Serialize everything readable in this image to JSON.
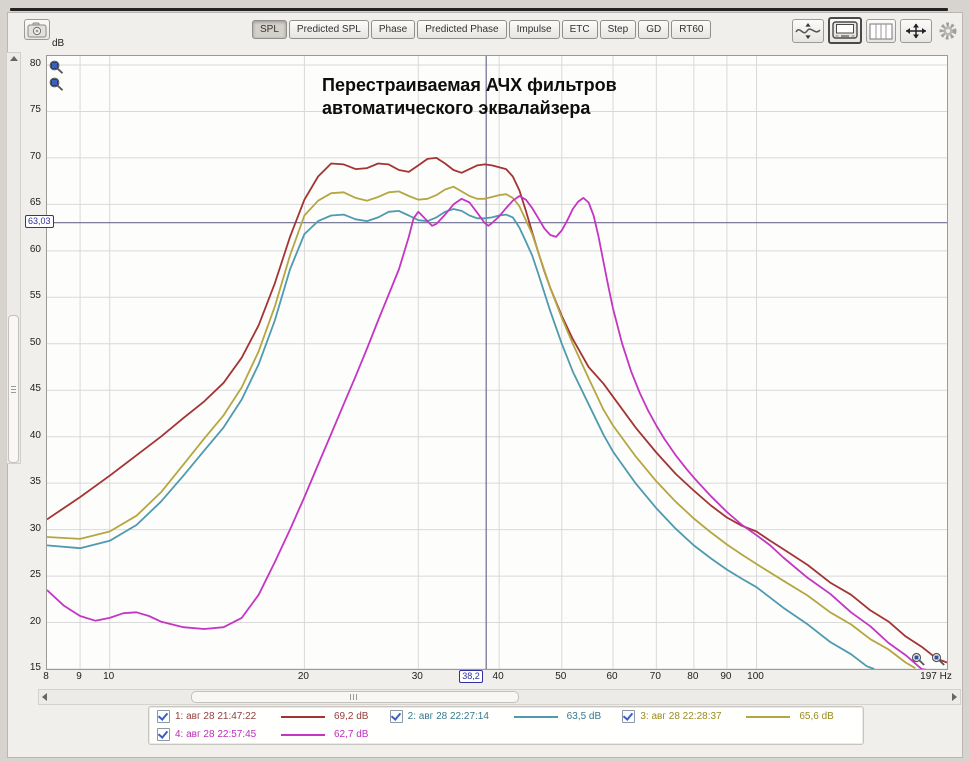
{
  "toolbar": {
    "camera_icon": "camera-icon",
    "tabs": [
      {
        "label": "SPL",
        "active": true
      },
      {
        "label": "Predicted SPL",
        "active": false
      },
      {
        "label": "Phase",
        "active": false
      },
      {
        "label": "Predicted Phase",
        "active": false
      },
      {
        "label": "Impulse",
        "active": false
      },
      {
        "label": "ETC",
        "active": false
      },
      {
        "label": "Step",
        "active": false
      },
      {
        "label": "GD",
        "active": false
      },
      {
        "label": "RT60",
        "active": false
      }
    ],
    "right_icons": [
      {
        "name": "smoothing-icon",
        "active": false
      },
      {
        "name": "graph-display-icon",
        "active": true
      },
      {
        "name": "frequency-bands-icon",
        "active": false
      },
      {
        "name": "pan-zoom-icon",
        "active": false
      },
      {
        "name": "settings-gear-icon",
        "active": false
      }
    ]
  },
  "chart_data": {
    "type": "line",
    "x_scale": "log",
    "x_range": [
      8,
      197
    ],
    "y_range": [
      15,
      80
    ],
    "y_axis_unit": "dB",
    "x_axis_unit": "Hz",
    "title_line1": "Перестраиваемая АЧХ фильтров",
    "title_line2": "автоматического эквалайзера",
    "y_ticks": [
      80,
      75,
      70,
      65,
      60,
      55,
      50,
      45,
      40,
      35,
      30,
      25,
      20,
      15
    ],
    "x_gridlines": [
      9,
      10,
      20,
      30,
      40,
      50,
      60,
      70,
      80,
      90,
      100
    ],
    "x_ticks": [
      {
        "f": 8,
        "label": "8"
      },
      {
        "f": 9,
        "label": "9"
      },
      {
        "f": 10,
        "label": "10"
      },
      {
        "f": 20,
        "label": "20"
      },
      {
        "f": 30,
        "label": "30"
      },
      {
        "f": 40,
        "label": "40"
      },
      {
        "f": 50,
        "label": "50"
      },
      {
        "f": 60,
        "label": "60"
      },
      {
        "f": 70,
        "label": "70"
      },
      {
        "f": 80,
        "label": "80"
      },
      {
        "f": 90,
        "label": "90"
      },
      {
        "f": 100,
        "label": "100"
      },
      {
        "f": 197,
        "label": "197 Hz"
      }
    ],
    "cursor": {
      "freq": 38.2,
      "freq_label": "38,2",
      "db": 63.03,
      "db_label": "63,03"
    },
    "colors": {
      "grid": "#d9d9d9",
      "cursor": "#6b6b8f",
      "cursor_label": "#2f2fa0"
    },
    "legend_rows": [
      [
        0,
        1,
        2
      ],
      [
        3
      ]
    ],
    "series": [
      {
        "id": "1",
        "name": "1: авг 28 21:47:22",
        "value": "69,2 dB",
        "color": "#a33434",
        "text_color": "#94403f",
        "checked": true,
        "points": [
          [
            8,
            31.1
          ],
          [
            9,
            33.5
          ],
          [
            10,
            35.8
          ],
          [
            11,
            38
          ],
          [
            12,
            40
          ],
          [
            13,
            42
          ],
          [
            14,
            43.8
          ],
          [
            15,
            45.8
          ],
          [
            16,
            48.5
          ],
          [
            17,
            52
          ],
          [
            18,
            56.5
          ],
          [
            19,
            61.5
          ],
          [
            20,
            65.5
          ],
          [
            21,
            68
          ],
          [
            22,
            69.4
          ],
          [
            23,
            69.3
          ],
          [
            24,
            68.8
          ],
          [
            25,
            68.9
          ],
          [
            26,
            69.4
          ],
          [
            27,
            69.3
          ],
          [
            28,
            68.7
          ],
          [
            29,
            68.5
          ],
          [
            30,
            69.2
          ],
          [
            31,
            69.9
          ],
          [
            32,
            70
          ],
          [
            33,
            69.4
          ],
          [
            34,
            68.7
          ],
          [
            35,
            68.4
          ],
          [
            36,
            68.8
          ],
          [
            37,
            69.2
          ],
          [
            38,
            69.3
          ],
          [
            39,
            69.2
          ],
          [
            40,
            69
          ],
          [
            41,
            68.8
          ],
          [
            42,
            68
          ],
          [
            43,
            66.5
          ],
          [
            44,
            64.3
          ],
          [
            45,
            62
          ],
          [
            46,
            59.8
          ],
          [
            47,
            57.8
          ],
          [
            48,
            56
          ],
          [
            50,
            53
          ],
          [
            52,
            50.5
          ],
          [
            55,
            47.5
          ],
          [
            58,
            45.7
          ],
          [
            60,
            44.3
          ],
          [
            65,
            41
          ],
          [
            70,
            38.3
          ],
          [
            75,
            36
          ],
          [
            80,
            34.2
          ],
          [
            85,
            32.6
          ],
          [
            90,
            31.3
          ],
          [
            95,
            30.4
          ],
          [
            100,
            29.8
          ],
          [
            105,
            28.8
          ],
          [
            110,
            27.9
          ],
          [
            120,
            26.1
          ],
          [
            130,
            24.4
          ],
          [
            140,
            22.9
          ],
          [
            150,
            21.4
          ],
          [
            160,
            20
          ],
          [
            170,
            18.6
          ],
          [
            180,
            17.3
          ],
          [
            190,
            16.2
          ],
          [
            197,
            15.6
          ]
        ]
      },
      {
        "id": "2",
        "name": "2: авг 28 22:27:14",
        "value": "63,5 dB",
        "color": "#4e9aae",
        "text_color": "#37798c",
        "checked": true,
        "points": [
          [
            8,
            28.3
          ],
          [
            9,
            28
          ],
          [
            10,
            28.8
          ],
          [
            11,
            30.5
          ],
          [
            12,
            33
          ],
          [
            13,
            35.8
          ],
          [
            14,
            38.5
          ],
          [
            15,
            41
          ],
          [
            16,
            44
          ],
          [
            17,
            47.8
          ],
          [
            18,
            52.5
          ],
          [
            19,
            58
          ],
          [
            20,
            61.8
          ],
          [
            21,
            63.2
          ],
          [
            22,
            63.8
          ],
          [
            23,
            63.9
          ],
          [
            24,
            63.4
          ],
          [
            25,
            63.2
          ],
          [
            26,
            63.6
          ],
          [
            27,
            64.2
          ],
          [
            28,
            64.3
          ],
          [
            29,
            63.8
          ],
          [
            30,
            63.3
          ],
          [
            31,
            63.2
          ],
          [
            32,
            63.6
          ],
          [
            33,
            64.2
          ],
          [
            34,
            64.5
          ],
          [
            35,
            64.3
          ],
          [
            36,
            63.8
          ],
          [
            37,
            63.5
          ],
          [
            38,
            63.5
          ],
          [
            39,
            63.6
          ],
          [
            40,
            63.8
          ],
          [
            41,
            63.9
          ],
          [
            42,
            63.6
          ],
          [
            43,
            62.5
          ],
          [
            44,
            61
          ],
          [
            45,
            59.5
          ],
          [
            46,
            57.5
          ],
          [
            48,
            53.5
          ],
          [
            50,
            50
          ],
          [
            52,
            47
          ],
          [
            55,
            43.5
          ],
          [
            58,
            40.2
          ],
          [
            60,
            38.4
          ],
          [
            65,
            35
          ],
          [
            70,
            32.3
          ],
          [
            75,
            30.1
          ],
          [
            80,
            28.3
          ],
          [
            85,
            26.9
          ],
          [
            90,
            25.7
          ],
          [
            95,
            24.7
          ],
          [
            100,
            23.8
          ],
          [
            110,
            21.6
          ],
          [
            120,
            19.7
          ],
          [
            130,
            18
          ],
          [
            140,
            16.5
          ],
          [
            148,
            15.4
          ],
          [
            152,
            14.9
          ]
        ]
      },
      {
        "id": "3",
        "name": "3: авг 28 22:28:37",
        "value": "65,6 dB",
        "color": "#b5a642",
        "text_color": "#9c8b20",
        "checked": true,
        "points": [
          [
            8,
            29.2
          ],
          [
            9,
            29
          ],
          [
            10,
            29.8
          ],
          [
            11,
            31.5
          ],
          [
            12,
            34
          ],
          [
            13,
            37
          ],
          [
            14,
            39.8
          ],
          [
            15,
            42.3
          ],
          [
            16,
            45.3
          ],
          [
            17,
            49.2
          ],
          [
            18,
            54
          ],
          [
            19,
            59.5
          ],
          [
            20,
            63.8
          ],
          [
            21,
            65.4
          ],
          [
            22,
            66.2
          ],
          [
            23,
            66.3
          ],
          [
            24,
            65.7
          ],
          [
            25,
            65.4
          ],
          [
            26,
            65.8
          ],
          [
            27,
            66.3
          ],
          [
            28,
            66.4
          ],
          [
            29,
            65.9
          ],
          [
            30,
            65.5
          ],
          [
            31,
            65.6
          ],
          [
            32,
            66
          ],
          [
            33,
            66.6
          ],
          [
            34,
            66.9
          ],
          [
            35,
            66.4
          ],
          [
            36,
            65.9
          ],
          [
            37,
            65.6
          ],
          [
            38,
            65.6
          ],
          [
            39,
            65.8
          ],
          [
            40,
            66
          ],
          [
            41,
            66.1
          ],
          [
            42,
            65.7
          ],
          [
            43,
            64.8
          ],
          [
            44,
            63.3
          ],
          [
            45,
            61.8
          ],
          [
            46,
            59.8
          ],
          [
            48,
            56
          ],
          [
            50,
            52.8
          ],
          [
            52,
            50
          ],
          [
            55,
            46.3
          ],
          [
            58,
            42.9
          ],
          [
            60,
            41.2
          ],
          [
            65,
            37.9
          ],
          [
            70,
            35.2
          ],
          [
            75,
            33
          ],
          [
            80,
            31.2
          ],
          [
            85,
            29.7
          ],
          [
            90,
            28.4
          ],
          [
            95,
            27.3
          ],
          [
            100,
            26.3
          ],
          [
            110,
            24.5
          ],
          [
            120,
            22.8
          ],
          [
            130,
            21.2
          ],
          [
            140,
            19.7
          ],
          [
            150,
            18.3
          ],
          [
            160,
            17
          ],
          [
            170,
            15.8
          ],
          [
            176,
            15
          ]
        ]
      },
      {
        "id": "4",
        "name": "4: авг 28 22:57:45",
        "value": "62,7 dB",
        "color": "#c435c4",
        "text_color": "#bb2dbb",
        "checked": true,
        "points": [
          [
            8,
            23.5
          ],
          [
            8.5,
            21.8
          ],
          [
            9,
            20.7
          ],
          [
            9.5,
            20.2
          ],
          [
            10,
            20.5
          ],
          [
            10.5,
            21
          ],
          [
            11,
            21.1
          ],
          [
            11.5,
            20.7
          ],
          [
            12,
            20.1
          ],
          [
            13,
            19.5
          ],
          [
            14,
            19.3
          ],
          [
            15,
            19.5
          ],
          [
            16,
            20.5
          ],
          [
            17,
            23
          ],
          [
            18,
            26.5
          ],
          [
            19,
            30
          ],
          [
            20,
            33.5
          ],
          [
            21,
            37
          ],
          [
            22,
            40.3
          ],
          [
            23,
            43.5
          ],
          [
            24,
            46.5
          ],
          [
            25,
            49.5
          ],
          [
            26,
            52.5
          ],
          [
            27,
            55.3
          ],
          [
            28,
            58
          ],
          [
            29,
            61.5
          ],
          [
            29.5,
            63.5
          ],
          [
            30,
            64.2
          ],
          [
            31,
            63.2
          ],
          [
            31.5,
            62.7
          ],
          [
            32,
            62.9
          ],
          [
            33,
            63.9
          ],
          [
            34,
            65
          ],
          [
            35,
            65.6
          ],
          [
            36,
            65.2
          ],
          [
            37,
            64.1
          ],
          [
            38,
            63
          ],
          [
            38.5,
            62.7
          ],
          [
            39,
            63
          ],
          [
            40,
            63.7
          ],
          [
            41,
            64.6
          ],
          [
            42,
            65.4
          ],
          [
            43,
            65.9
          ],
          [
            44,
            65.5
          ],
          [
            45,
            64.6
          ],
          [
            46,
            63.5
          ],
          [
            47,
            62.4
          ],
          [
            48,
            61.7
          ],
          [
            49,
            61.5
          ],
          [
            50,
            62.2
          ],
          [
            51,
            63.3
          ],
          [
            52,
            64.5
          ],
          [
            53,
            65.3
          ],
          [
            54,
            65.7
          ],
          [
            55,
            65.2
          ],
          [
            56,
            63.8
          ],
          [
            57,
            61.5
          ],
          [
            58,
            58.8
          ],
          [
            59,
            56.2
          ],
          [
            60,
            53.8
          ],
          [
            62,
            50
          ],
          [
            64,
            47
          ],
          [
            66,
            44.7
          ],
          [
            68,
            42.8
          ],
          [
            70,
            41.2
          ],
          [
            72,
            39.8
          ],
          [
            75,
            38
          ],
          [
            78,
            36.5
          ],
          [
            80,
            35.6
          ],
          [
            85,
            33.6
          ],
          [
            90,
            31.9
          ],
          [
            95,
            30.5
          ],
          [
            100,
            29.4
          ],
          [
            105,
            28.3
          ],
          [
            110,
            27
          ],
          [
            120,
            24.9
          ],
          [
            130,
            23
          ],
          [
            140,
            21.2
          ],
          [
            150,
            19.5
          ],
          [
            160,
            17.9
          ],
          [
            170,
            16.4
          ],
          [
            180,
            15.1
          ],
          [
            184,
            14.8
          ]
        ]
      }
    ]
  }
}
